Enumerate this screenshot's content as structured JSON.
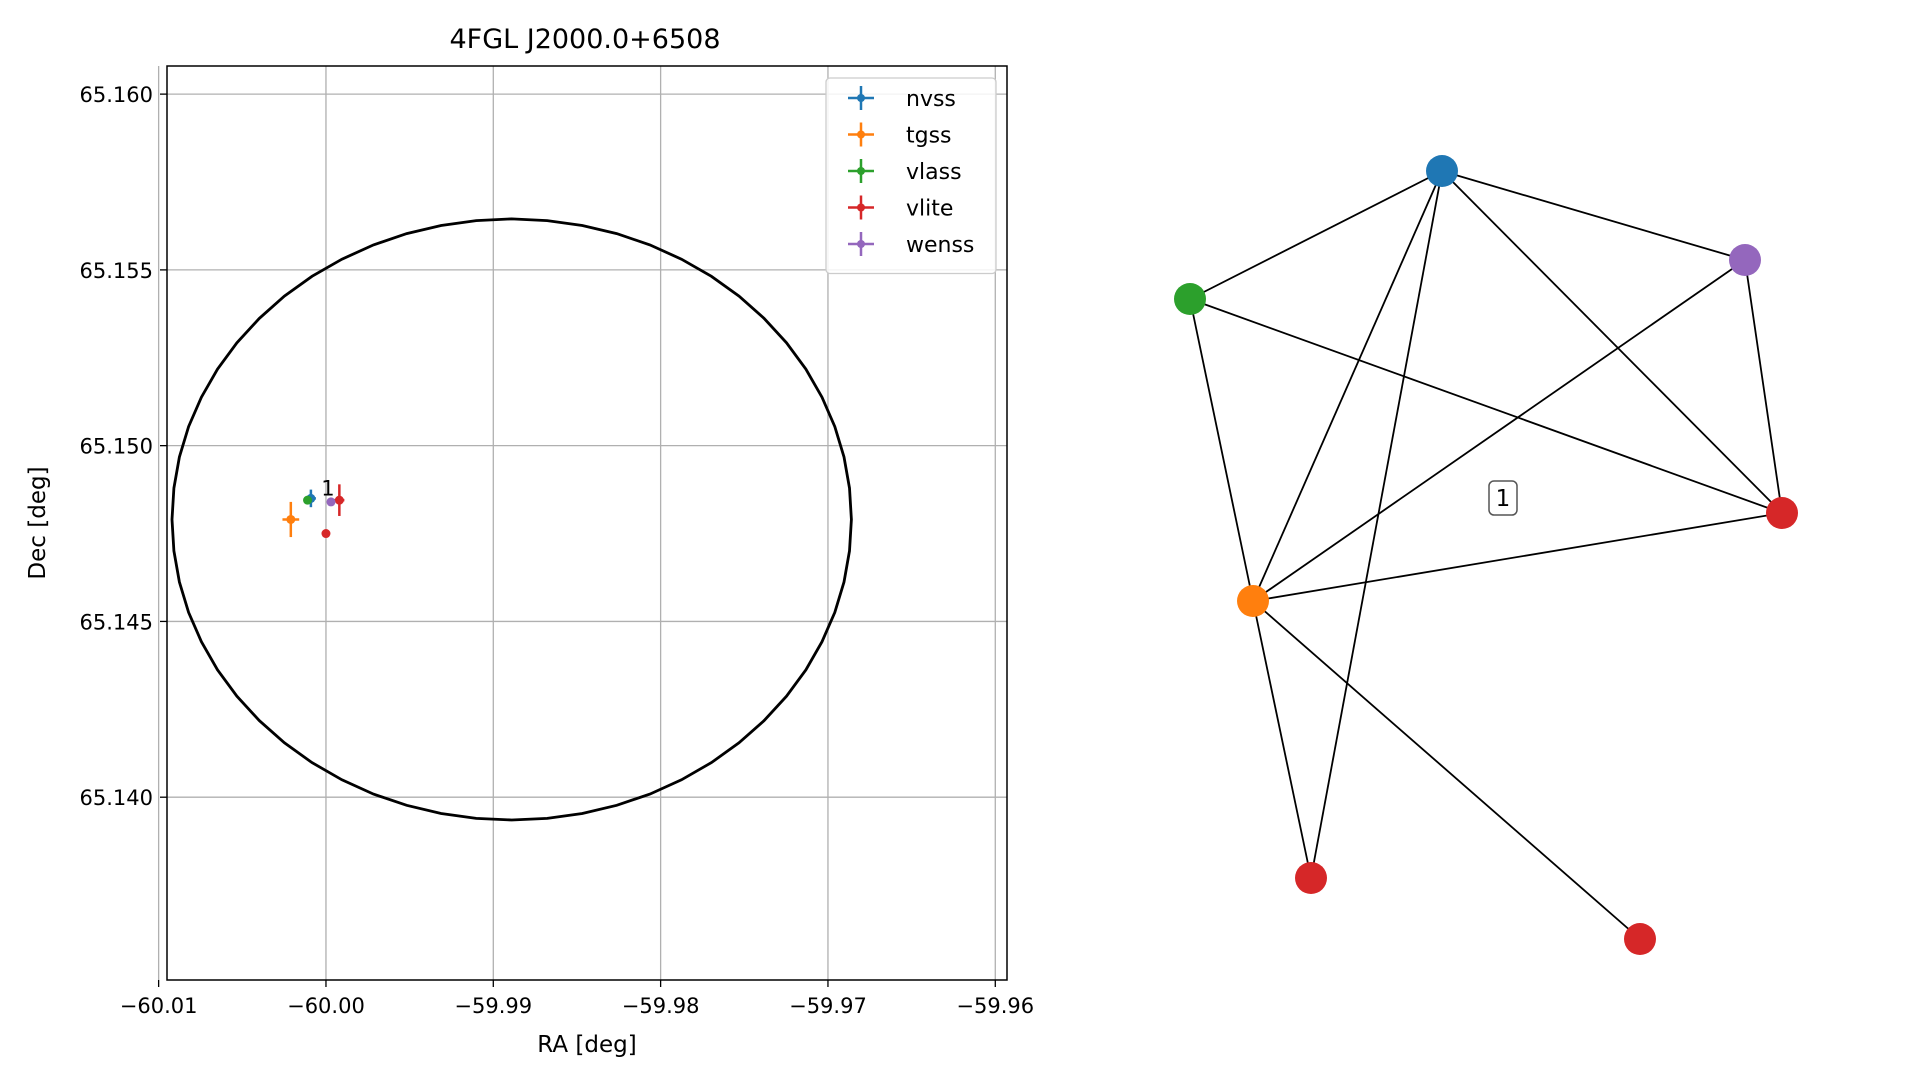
{
  "chart_data": [
    {
      "type": "scatter",
      "title": "4FGL J2000.0+6508",
      "xlabel": "RA [deg]",
      "ylabel": "Dec [deg]",
      "xlim": [
        -60.0095,
        -59.9593
      ],
      "ylim": [
        65.1348,
        65.1608
      ],
      "xticks": [
        -60.01,
        -60.0,
        -59.99,
        -59.98,
        -59.97,
        -59.96
      ],
      "xtick_labels": [
        "−60.01",
        "−60.00",
        "−59.99",
        "−59.98",
        "−59.97",
        "−59.96"
      ],
      "yticks": [
        65.14,
        65.145,
        65.15,
        65.155,
        65.16
      ],
      "ytick_labels": [
        "65.140",
        "65.145",
        "65.150",
        "65.155",
        "65.160"
      ],
      "grid": true,
      "legend_position": "top-right",
      "series": [
        {
          "name": "nvss",
          "color": "#1f77b4",
          "points": [
            {
              "x": -60.0009,
              "y": 65.1485,
              "xerr": 0.0003,
              "yerr": 0.00025
            }
          ]
        },
        {
          "name": "tgss",
          "color": "#ff7f0e",
          "points": [
            {
              "x": -60.0021,
              "y": 65.1479,
              "xerr": 0.0005,
              "yerr": 0.0005
            }
          ]
        },
        {
          "name": "vlass",
          "color": "#2ca02c",
          "points": [
            {
              "x": -60.0011,
              "y": 65.14845,
              "xerr": 0.0001,
              "yerr": 0.0001
            }
          ]
        },
        {
          "name": "vlite",
          "color": "#d62728",
          "points": [
            {
              "x": -59.9992,
              "y": 65.14845,
              "xerr": 0.0003,
              "yerr": 0.00045
            },
            {
              "x": -60.0,
              "y": 65.1475
            }
          ]
        },
        {
          "name": "wenss",
          "color": "#9467bd",
          "points": [
            {
              "x": -59.9997,
              "y": 65.1484
            }
          ]
        }
      ],
      "ellipse": {
        "center": [
          -59.9889,
          65.1479
        ],
        "rx": 0.0203,
        "ry": 0.00855,
        "color": "#000000"
      },
      "annotations": [
        {
          "text": "1",
          "x": -60.0,
          "y": 65.1487
        }
      ]
    },
    {
      "type": "network",
      "nodes": [
        {
          "id": "nvss",
          "color": "#1f77b4"
        },
        {
          "id": "wenss",
          "color": "#9467bd"
        },
        {
          "id": "vlass",
          "color": "#2ca02c"
        },
        {
          "id": "vlite_a",
          "color": "#d62728"
        },
        {
          "id": "tgss",
          "color": "#ff7f0e"
        },
        {
          "id": "vlite_b",
          "color": "#d62728"
        },
        {
          "id": "vlite_c",
          "color": "#d62728"
        }
      ],
      "edges": [
        [
          "nvss",
          "vlass"
        ],
        [
          "nvss",
          "wenss"
        ],
        [
          "nvss",
          "vlite_a"
        ],
        [
          "nvss",
          "tgss"
        ],
        [
          "nvss",
          "vlite_b"
        ],
        [
          "vlass",
          "vlite_a"
        ],
        [
          "vlass",
          "tgss"
        ],
        [
          "wenss",
          "vlite_a"
        ],
        [
          "wenss",
          "tgss"
        ],
        [
          "tgss",
          "vlite_a"
        ],
        [
          "tgss",
          "vlite_b"
        ],
        [
          "tgss",
          "vlite_c"
        ]
      ],
      "group_label": "1"
    }
  ]
}
